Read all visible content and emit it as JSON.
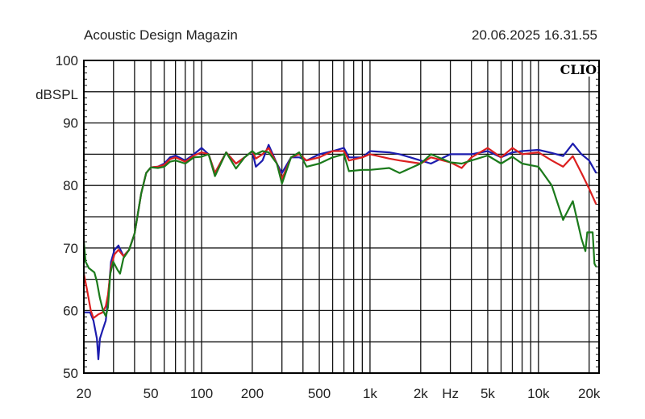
{
  "chart_data": {
    "type": "line",
    "title": "Acoustic Design Magazin",
    "timestamp": "20.06.2025 16.31.55",
    "logo": "CLIO",
    "ylabel": "dBSPL",
    "xlabel": "Hz",
    "xscale": "log",
    "xlim": [
      20,
      22900
    ],
    "ylim": [
      50,
      100
    ],
    "grid": true,
    "y_ticks": [
      {
        "v": 100,
        "label": "100"
      },
      {
        "v": 90,
        "label": "90"
      },
      {
        "v": 80,
        "label": "80"
      },
      {
        "v": 70,
        "label": "70"
      },
      {
        "v": 60,
        "label": "60"
      },
      {
        "v": 50,
        "label": "50"
      }
    ],
    "y_grid_step": 5,
    "x_grid": [
      20,
      30,
      40,
      50,
      60,
      70,
      80,
      90,
      100,
      200,
      300,
      400,
      500,
      600,
      700,
      800,
      900,
      1000,
      2000,
      3000,
      4000,
      5000,
      6000,
      7000,
      8000,
      9000,
      10000,
      20000
    ],
    "x_ticks": [
      {
        "v": 20,
        "label": "20"
      },
      {
        "v": 50,
        "label": "50"
      },
      {
        "v": 100,
        "label": "100"
      },
      {
        "v": 200,
        "label": "200"
      },
      {
        "v": 500,
        "label": "500"
      },
      {
        "v": 1000,
        "label": "1k"
      },
      {
        "v": 2000,
        "label": "2k"
      },
      {
        "v": 3000,
        "label": "Hz"
      },
      {
        "v": 5000,
        "label": "5k"
      },
      {
        "v": 10000,
        "label": "10k"
      },
      {
        "v": 20000,
        "label": "20k"
      }
    ],
    "series": [
      {
        "name": "blue",
        "color": "#1c1cae",
        "points": [
          [
            20,
            59.7
          ],
          [
            21.8,
            59.7
          ],
          [
            22.8,
            58.4
          ],
          [
            23.9,
            55.5
          ],
          [
            24.4,
            52.2
          ],
          [
            24.9,
            55.5
          ],
          [
            25.8,
            56.8
          ],
          [
            27,
            58.4
          ],
          [
            27.8,
            61.7
          ],
          [
            29,
            67.8
          ],
          [
            30.4,
            69.7
          ],
          [
            32.1,
            70.4
          ],
          [
            34.4,
            68.7
          ],
          [
            37.1,
            69.7
          ],
          [
            40,
            72.3
          ],
          [
            43.8,
            78.7
          ],
          [
            46.9,
            82
          ],
          [
            50,
            82.9
          ],
          [
            55,
            83
          ],
          [
            60,
            83.5
          ],
          [
            65,
            84.5
          ],
          [
            70,
            84.8
          ],
          [
            80,
            84
          ],
          [
            90,
            85
          ],
          [
            100,
            86
          ],
          [
            110,
            85
          ],
          [
            120,
            82
          ],
          [
            140,
            85.3
          ],
          [
            160,
            83.5
          ],
          [
            180,
            84.5
          ],
          [
            200,
            85.5
          ],
          [
            210,
            83
          ],
          [
            230,
            84
          ],
          [
            250,
            86.5
          ],
          [
            280,
            83.5
          ],
          [
            300,
            82
          ],
          [
            340,
            84.5
          ],
          [
            380,
            84.5
          ],
          [
            420,
            84
          ],
          [
            500,
            85
          ],
          [
            600,
            85.5
          ],
          [
            700,
            86
          ],
          [
            750,
            84.5
          ],
          [
            900,
            84.5
          ],
          [
            1000,
            85.5
          ],
          [
            1300,
            85.3
          ],
          [
            1500,
            85
          ],
          [
            2000,
            84
          ],
          [
            2300,
            83.5
          ],
          [
            3000,
            85
          ],
          [
            3500,
            85
          ],
          [
            4000,
            85
          ],
          [
            5000,
            85.5
          ],
          [
            6000,
            84.5
          ],
          [
            7000,
            85.3
          ],
          [
            8000,
            85.5
          ],
          [
            10000,
            85.7
          ],
          [
            12000,
            85.2
          ],
          [
            14000,
            84.7
          ],
          [
            16000,
            86.7
          ],
          [
            18000,
            85
          ],
          [
            20000,
            84
          ],
          [
            22000,
            82
          ]
        ]
      },
      {
        "name": "red",
        "color": "#dc2020",
        "points": [
          [
            20,
            65.9
          ],
          [
            20.9,
            63.3
          ],
          [
            22,
            60
          ],
          [
            22.8,
            58.8
          ],
          [
            24.4,
            59.4
          ],
          [
            25.8,
            59.7
          ],
          [
            27,
            60.7
          ],
          [
            27.8,
            62.5
          ],
          [
            29,
            67
          ],
          [
            30.4,
            69
          ],
          [
            32.1,
            69.7
          ],
          [
            34.4,
            68.7
          ],
          [
            37.1,
            69.7
          ],
          [
            40,
            72.3
          ],
          [
            43.8,
            78.7
          ],
          [
            46.9,
            82
          ],
          [
            50,
            82.9
          ],
          [
            55,
            83
          ],
          [
            60,
            83.3
          ],
          [
            65,
            84.2
          ],
          [
            70,
            84.5
          ],
          [
            80,
            83.8
          ],
          [
            90,
            84.8
          ],
          [
            100,
            85.3
          ],
          [
            110,
            85
          ],
          [
            120,
            82
          ],
          [
            140,
            85.3
          ],
          [
            160,
            83.5
          ],
          [
            180,
            84.5
          ],
          [
            200,
            85.5
          ],
          [
            210,
            84.3
          ],
          [
            230,
            85
          ],
          [
            250,
            86
          ],
          [
            280,
            83.5
          ],
          [
            300,
            81
          ],
          [
            340,
            84.5
          ],
          [
            380,
            85
          ],
          [
            420,
            84
          ],
          [
            500,
            84.5
          ],
          [
            600,
            85.5
          ],
          [
            700,
            85.5
          ],
          [
            750,
            84
          ],
          [
            900,
            84.5
          ],
          [
            1000,
            85
          ],
          [
            1300,
            84.3
          ],
          [
            1500,
            84
          ],
          [
            2000,
            83.5
          ],
          [
            2300,
            84.5
          ],
          [
            3000,
            83.7
          ],
          [
            3500,
            82.8
          ],
          [
            4000,
            84.5
          ],
          [
            5000,
            86
          ],
          [
            6000,
            84.5
          ],
          [
            7000,
            86
          ],
          [
            8000,
            85
          ],
          [
            10000,
            85.3
          ],
          [
            12000,
            84
          ],
          [
            14000,
            83
          ],
          [
            16000,
            84.7
          ],
          [
            18000,
            82
          ],
          [
            20000,
            79.5
          ],
          [
            22000,
            77
          ]
        ]
      },
      {
        "name": "green",
        "color": "#1b7a1b",
        "points": [
          [
            20,
            71
          ],
          [
            20.5,
            67.8
          ],
          [
            21.4,
            66.8
          ],
          [
            23.1,
            66.1
          ],
          [
            23.9,
            64.6
          ],
          [
            24.9,
            62
          ],
          [
            26,
            60
          ],
          [
            27,
            59.1
          ],
          [
            27.8,
            60.5
          ],
          [
            28.7,
            65.9
          ],
          [
            29.9,
            67.8
          ],
          [
            31.7,
            66.5
          ],
          [
            32.8,
            65.9
          ],
          [
            34.4,
            68.4
          ],
          [
            37.1,
            69.7
          ],
          [
            40,
            72.3
          ],
          [
            43.8,
            78.7
          ],
          [
            46.9,
            82
          ],
          [
            50,
            82.9
          ],
          [
            55,
            82.8
          ],
          [
            60,
            83
          ],
          [
            65,
            83.8
          ],
          [
            70,
            84
          ],
          [
            80,
            83.5
          ],
          [
            90,
            84.5
          ],
          [
            100,
            84.6
          ],
          [
            110,
            85
          ],
          [
            120,
            81.5
          ],
          [
            140,
            85.3
          ],
          [
            160,
            82.7
          ],
          [
            180,
            84.5
          ],
          [
            200,
            85.5
          ],
          [
            210,
            85
          ],
          [
            230,
            85.5
          ],
          [
            250,
            85.3
          ],
          [
            280,
            83.5
          ],
          [
            300,
            80.3
          ],
          [
            340,
            84.5
          ],
          [
            380,
            85.3
          ],
          [
            420,
            83
          ],
          [
            500,
            83.5
          ],
          [
            600,
            84.5
          ],
          [
            700,
            85
          ],
          [
            750,
            82.3
          ],
          [
            900,
            82.5
          ],
          [
            1000,
            82.5
          ],
          [
            1300,
            82.8
          ],
          [
            1500,
            82
          ],
          [
            2000,
            83.5
          ],
          [
            2300,
            85
          ],
          [
            3000,
            83.7
          ],
          [
            3500,
            83.5
          ],
          [
            4000,
            84
          ],
          [
            5000,
            84.8
          ],
          [
            6000,
            83.5
          ],
          [
            7000,
            84.6
          ],
          [
            8000,
            83.5
          ],
          [
            10000,
            83
          ],
          [
            12000,
            80
          ],
          [
            14000,
            74.5
          ],
          [
            16000,
            77.5
          ],
          [
            18000,
            71.5
          ],
          [
            19000,
            69.5
          ],
          [
            19500,
            72.5
          ],
          [
            21000,
            72.5
          ],
          [
            21500,
            67.5
          ],
          [
            22000,
            67
          ]
        ]
      }
    ]
  }
}
